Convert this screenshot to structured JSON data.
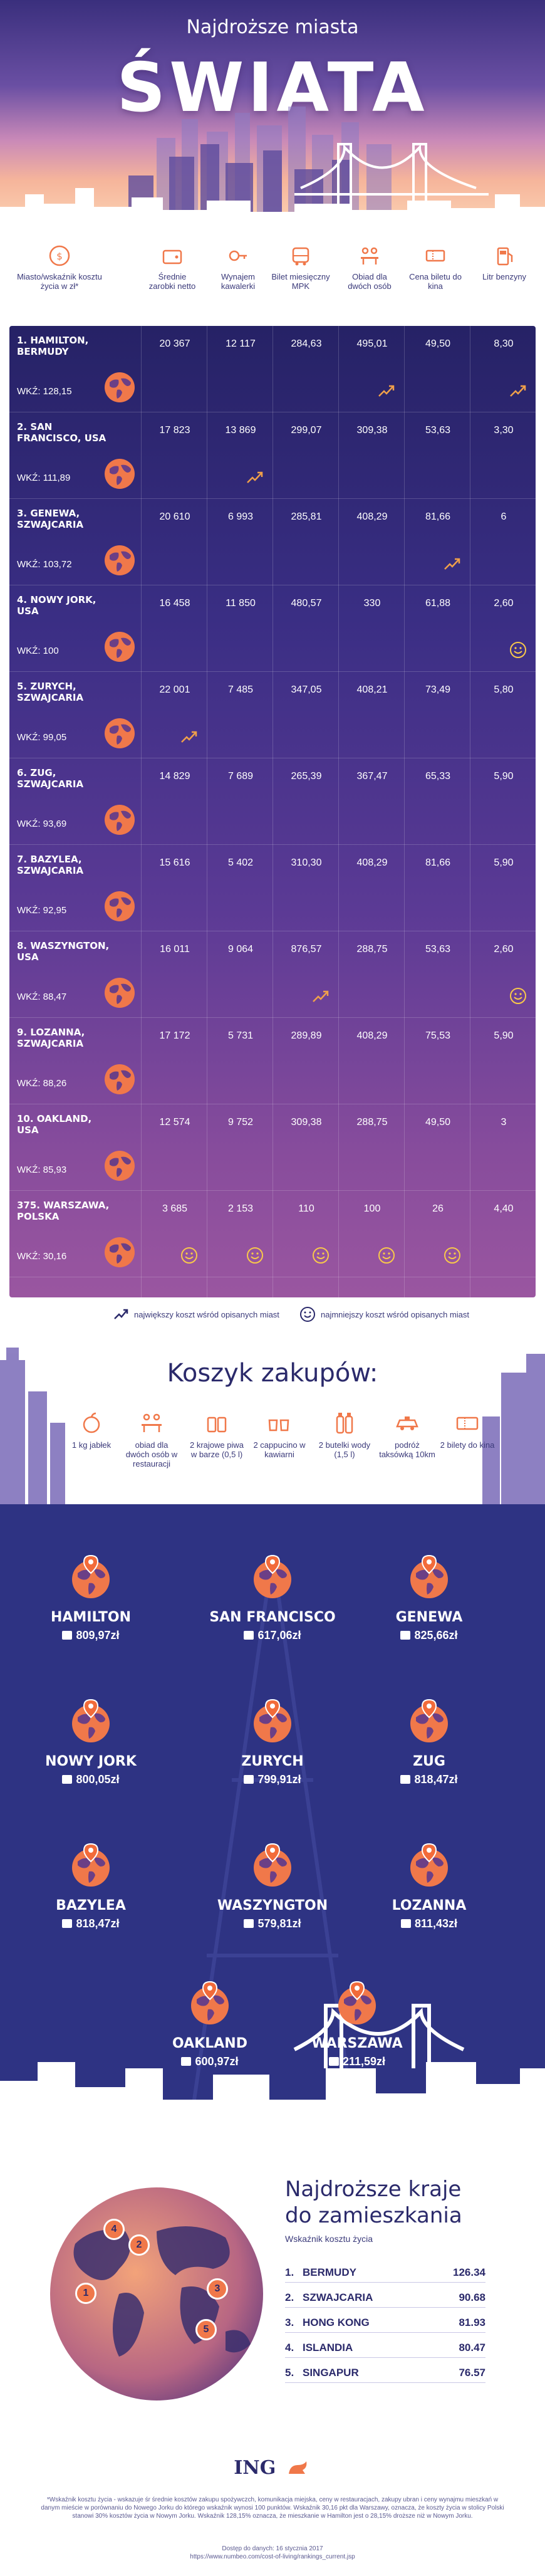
{
  "hero": {
    "subtitle": "Najdroższe miasta",
    "title": "ŚWIATA"
  },
  "columns": [
    {
      "label": "Miasto/wskaźnik kosztu życia w zł*",
      "icon": "coins-icon"
    },
    {
      "label": "Średnie zarobki netto",
      "icon": "wallet-icon"
    },
    {
      "label": "Wynajem kawalerki",
      "icon": "key-icon"
    },
    {
      "label": "Bilet miesięczny MPK",
      "icon": "bus-icon"
    },
    {
      "label": "Obiad dla dwóch osób",
      "icon": "dinner-icon"
    },
    {
      "label": "Cena biletu do kina",
      "icon": "ticket-icon"
    },
    {
      "label": "Litr benzyny",
      "icon": "fuel-icon"
    }
  ],
  "rows": [
    {
      "city": "1. HAMILTON, BERMUDY",
      "wkz": "WKŹ: 128,15",
      "values": [
        "20 367",
        "12 117",
        "284,63",
        "495,01",
        "49,50",
        "8,30"
      ]
    },
    {
      "city": "2. SAN FRANCISCO, USA",
      "wkz": "WKŹ: 111,89",
      "values": [
        "17 823",
        "13 869",
        "299,07",
        "309,38",
        "53,63",
        "3,30"
      ]
    },
    {
      "city": "3. GENEWA, SZWAJCARIA",
      "wkz": "WKŹ: 103,72",
      "values": [
        "20 610",
        "6 993",
        "285,81",
        "408,29",
        "81,66",
        "6"
      ]
    },
    {
      "city": "4. NOWY JORK, USA",
      "wkz": "WKŹ: 100",
      "values": [
        "16 458",
        "11 850",
        "480,57",
        "330",
        "61,88",
        "2,60"
      ]
    },
    {
      "city": "5. ZURYCH, SZWAJCARIA",
      "wkz": "WKŹ: 99,05",
      "values": [
        "22 001",
        "7 485",
        "347,05",
        "408,21",
        "73,49",
        "5,80"
      ]
    },
    {
      "city": "6. ZUG, SZWAJCARIA",
      "wkz": "WKŹ: 93,69",
      "values": [
        "14 829",
        "7 689",
        "265,39",
        "367,47",
        "65,33",
        "5,90"
      ]
    },
    {
      "city": "7. BAZYLEA, SZWAJCARIA",
      "wkz": "WKŹ: 92,95",
      "values": [
        "15 616",
        "5 402",
        "310,30",
        "408,29",
        "81,66",
        "5,90"
      ]
    },
    {
      "city": "8. WASZYNGTON, USA",
      "wkz": "WKŹ: 88,47",
      "values": [
        "16 011",
        "9 064",
        "876,57",
        "288,75",
        "53,63",
        "2,60"
      ]
    },
    {
      "city": "9. LOZANNA, SZWAJCARIA",
      "wkz": "WKŹ: 88,26",
      "values": [
        "17 172",
        "5 731",
        "289,89",
        "408,29",
        "75,53",
        "5,90"
      ]
    },
    {
      "city": "10. OAKLAND, USA",
      "wkz": "WKŹ: 85,93",
      "values": [
        "12 574",
        "9 752",
        "309,38",
        "288,75",
        "49,50",
        "3"
      ]
    },
    {
      "city": "375. WARSZAWA, POLSKA",
      "wkz": "WKŹ: 30,16",
      "values": [
        "3 685",
        "2 153",
        "110",
        "100",
        "26",
        "4,40"
      ]
    }
  ],
  "marks": {
    "max": [
      [
        0,
        3
      ],
      [
        0,
        5
      ],
      [
        1,
        1
      ],
      [
        2,
        4
      ],
      [
        4,
        0
      ],
      [
        7,
        2
      ]
    ],
    "min": [
      [
        3,
        5
      ],
      [
        7,
        5
      ],
      [
        10,
        0
      ],
      [
        10,
        1
      ],
      [
        10,
        2
      ],
      [
        10,
        3
      ],
      [
        10,
        4
      ]
    ]
  },
  "legend": {
    "max_label": "największy koszt wśród opisanych miast",
    "min_label": "najmniejszy koszt wśród opisanych miast"
  },
  "basket": {
    "title": "Koszyk zakupów:",
    "items": [
      {
        "label": "1 kg jabłek",
        "icon": "apple-icon"
      },
      {
        "label": "obiad dla dwóch osób w restauracji",
        "icon": "dinner-icon"
      },
      {
        "label": "2 krajowe piwa w barze (0,5 l)",
        "icon": "beer-icon"
      },
      {
        "label": "2 cappucino w kawiarni",
        "icon": "coffee-icon"
      },
      {
        "label": "2 butelki wody (1,5 l)",
        "icon": "water-icon"
      },
      {
        "label": "podróż taksówką 10km",
        "icon": "taxi-icon"
      },
      {
        "label": "2 bilety do kina",
        "icon": "ticket-icon"
      }
    ]
  },
  "costs": [
    {
      "city": "HAMILTON",
      "price": "809,97zł"
    },
    {
      "city": "SAN FRANCISCO",
      "price": "617,06zł"
    },
    {
      "city": "GENEWA",
      "price": "825,66zł"
    },
    {
      "city": "NOWY JORK",
      "price": "800,05zł"
    },
    {
      "city": "ZURYCH",
      "price": "799,91zł"
    },
    {
      "city": "ZUG",
      "price": "818,47zł"
    },
    {
      "city": "BAZYLEA",
      "price": "818,47zł"
    },
    {
      "city": "WASZYNGTON",
      "price": "579,81zł"
    },
    {
      "city": "LOZANNA",
      "price": "811,43zł"
    },
    {
      "city": "OAKLAND",
      "price": "600,97zł"
    },
    {
      "city": "WARSZAWA",
      "price": "211,59zł"
    }
  ],
  "countries": {
    "title_line1": "Najdroższe kraje",
    "title_line2": "do zamieszkania",
    "subtitle": "Wskaźnik kosztu życia",
    "pins": [
      "1",
      "2",
      "3",
      "4",
      "5"
    ],
    "items": [
      {
        "rank": "1.",
        "name": "BERMUDY",
        "value": "126.34"
      },
      {
        "rank": "2.",
        "name": "SZWAJCARIA",
        "value": "90.68"
      },
      {
        "rank": "3.",
        "name": "HONG KONG",
        "value": "81.93"
      },
      {
        "rank": "4.",
        "name": "ISLANDIA",
        "value": "80.47"
      },
      {
        "rank": "5.",
        "name": "SINGAPUR",
        "value": "76.57"
      }
    ]
  },
  "footer": {
    "brand": "ING",
    "footnote": "*Wskaźnik kosztu życia - wskazuje śr średnie kosztów zakupu spożywczch, komunikacja miejska, ceny w restauracjach, zakupy ubran i ceny wynajmu mieszkań w danym mieście w porównaniu do Nowego Jorku do którego wskaźnik wynosi 100 punktów. Wskaźnik 30,16 pkt dla Warszawy, oznacza, że koszty życia w stolicy Polski stanowi 30% kosztów życia w Nowym Jorku. Wskaźnik 128,15% oznacza, że mieszkanie w Hamilton jest o 28,15% droższe niż w Nowym Jorku.",
    "source_date": "Dostęp do danych: 16 stycznia 2017",
    "source_url": "https://www.numbeo.com/cost-of-living/rankings_current.jsp"
  },
  "colors": {
    "navy": "#2b2a6b",
    "accent": "#f0784a",
    "table_top": "#262266",
    "table_bottom": "#9a56a0",
    "panel": "#2e3383"
  }
}
